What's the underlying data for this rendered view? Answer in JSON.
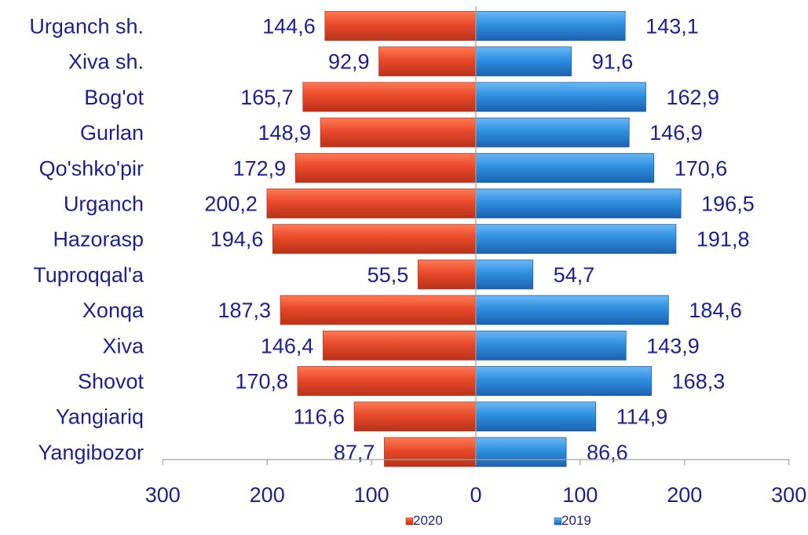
{
  "chart_data": {
    "type": "bar",
    "orientation": "horizontal",
    "layout": "butterfly",
    "categories": [
      "Urganch sh.",
      "Xiva sh.",
      "Bog'ot",
      "Gurlan",
      "Qo'shko'pir",
      "Urganch",
      "Hazorasp",
      "Tuproqqal'a",
      "Xonqa",
      "Xiva",
      "Shovot",
      "Yangiariq",
      "Yangibozor"
    ],
    "series": [
      {
        "name": "2020",
        "side": "left",
        "color": "#e84a2a",
        "values": [
          144.6,
          92.9,
          165.7,
          148.9,
          172.9,
          200.2,
          194.6,
          55.5,
          187.3,
          146.4,
          170.8,
          116.6,
          87.7
        ],
        "labels": [
          "144,6",
          "92,9",
          "165,7",
          "148,9",
          "172,9",
          "200,2",
          "194,6",
          "55,5",
          "187,3",
          "146,4",
          "170,8",
          "116,6",
          "87,7"
        ]
      },
      {
        "name": "2019",
        "side": "right",
        "color": "#2f8fe0",
        "values": [
          143.1,
          91.6,
          162.9,
          146.9,
          170.6,
          196.5,
          191.8,
          54.7,
          184.6,
          143.9,
          168.3,
          114.9,
          86.6
        ],
        "labels": [
          "143,1",
          "91,6",
          "162,9",
          "146,9",
          "170,6",
          "196,5",
          "191,8",
          "54,7",
          "184,6",
          "143,9",
          "168,3",
          "114,9",
          "86,6"
        ]
      }
    ],
    "x_ticks": [
      "300",
      "200",
      "100",
      "0",
      "100",
      "200",
      "300"
    ],
    "xlim": [
      -300,
      300
    ],
    "grid": false,
    "legend_position": "bottom-center",
    "title": "",
    "xlabel": "",
    "ylabel": ""
  },
  "colors": {
    "text": "#1f1f8f",
    "axis": "#a0a0a0"
  }
}
